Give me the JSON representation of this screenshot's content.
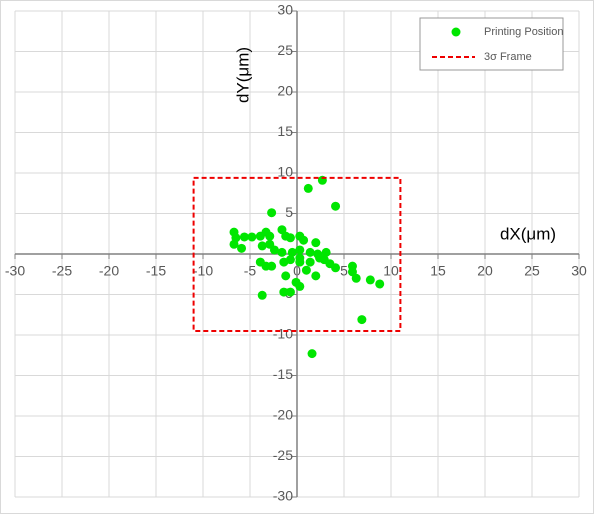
{
  "chart_data": {
    "type": "scatter",
    "x_label": "dX(μm)",
    "y_label": "dY(μm)",
    "xlim": [
      -30,
      30
    ],
    "ylim": [
      -30,
      30
    ],
    "xticks": [
      -30,
      -25,
      -20,
      -15,
      -10,
      -5,
      0,
      5,
      10,
      15,
      20,
      25,
      30
    ],
    "yticks": [
      -30,
      -25,
      -20,
      -15,
      -10,
      -5,
      0,
      5,
      10,
      15,
      20,
      25,
      30
    ],
    "grid": true,
    "legend": "upper right",
    "series": [
      {
        "name": "Printing Position",
        "color": "#00e600",
        "kind": "points",
        "x": [
          2.7,
          1.2,
          4.1,
          -2.7,
          -6.7,
          -6.5,
          -5.6,
          -4.8,
          -3.9,
          -3.3,
          -2.9,
          -1.6,
          -1.2,
          -0.7,
          0.3,
          0.7,
          2.0,
          -6.7,
          -5.9,
          -3.7,
          -2.9,
          -2.4,
          -1.6,
          -0.5,
          0.3,
          1.4,
          2.2,
          3.1,
          2.9,
          3.5,
          4.1,
          1.4,
          0.3,
          -0.7,
          -1.4,
          -3.9,
          -3.3,
          -2.7,
          5.9,
          5.9,
          6.3,
          7.8,
          8.8,
          2.0,
          1.0,
          -1.2,
          -0.1,
          0.3,
          -0.7,
          -1.4,
          -3.7,
          6.9,
          1.6,
          2.4,
          0.3
        ],
        "y": [
          9.1,
          8.1,
          5.9,
          5.1,
          2.7,
          2.0,
          2.1,
          2.1,
          2.2,
          2.7,
          2.2,
          3.0,
          2.2,
          2.0,
          2.2,
          1.7,
          1.4,
          1.2,
          0.7,
          1.0,
          1.2,
          0.5,
          0.2,
          0.2,
          0.5,
          0.2,
          0,
          0.2,
          -0.7,
          -1.2,
          -1.7,
          -1.0,
          -1.0,
          -0.7,
          -1.0,
          -1.0,
          -1.5,
          -1.5,
          -1.5,
          -2.2,
          -3.0,
          -3.2,
          -3.7,
          -2.7,
          -2.0,
          -2.7,
          -3.5,
          -4.0,
          -4.7,
          -4.7,
          -5.1,
          -8.1,
          -12.3,
          -0.5,
          -0.5
        ]
      },
      {
        "name": "3σ Frame",
        "color": "#ee0000",
        "kind": "dashed-line",
        "x": [
          -11,
          11,
          11,
          -11,
          -11
        ],
        "y": [
          9.4,
          9.4,
          -9.5,
          -9.5,
          9.4
        ]
      }
    ]
  }
}
